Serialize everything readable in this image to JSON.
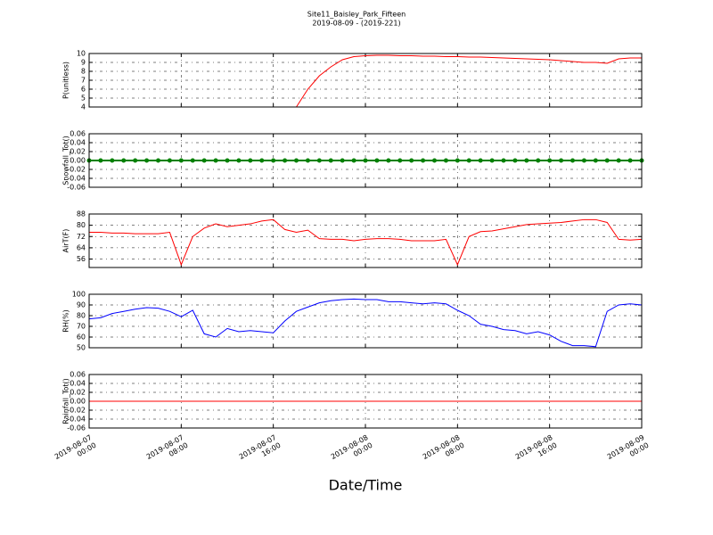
{
  "title": "Site11_Baisley_Park_Fifteen",
  "subtitle": "2019-08-09 - (2019-221)",
  "xlabel": "Date/Time",
  "xlim": [
    "2019-08-07 00:00",
    "2019-08-09 00:00"
  ],
  "xticks": [
    "2019-08-07 00:00",
    "2019-08-07 08:00",
    "2019-08-07 16:00",
    "2019-08-08 00:00",
    "2019-08-08 08:00",
    "2019-08-08 16:00",
    "2019-08-09 00:00"
  ],
  "x": [
    "2019-08-07 00:00",
    "2019-08-07 01:00",
    "2019-08-07 02:00",
    "2019-08-07 03:00",
    "2019-08-07 04:00",
    "2019-08-07 05:00",
    "2019-08-07 06:00",
    "2019-08-07 07:00",
    "2019-08-07 08:00",
    "2019-08-07 09:00",
    "2019-08-07 10:00",
    "2019-08-07 11:00",
    "2019-08-07 12:00",
    "2019-08-07 13:00",
    "2019-08-07 14:00",
    "2019-08-07 15:00",
    "2019-08-07 16:00",
    "2019-08-07 17:00",
    "2019-08-07 18:00",
    "2019-08-07 19:00",
    "2019-08-07 20:00",
    "2019-08-07 21:00",
    "2019-08-07 22:00",
    "2019-08-07 23:00",
    "2019-08-08 00:00",
    "2019-08-08 01:00",
    "2019-08-08 02:00",
    "2019-08-08 03:00",
    "2019-08-08 04:00",
    "2019-08-08 05:00",
    "2019-08-08 06:00",
    "2019-08-08 07:00",
    "2019-08-08 08:00",
    "2019-08-08 09:00",
    "2019-08-08 10:00",
    "2019-08-08 11:00",
    "2019-08-08 12:00",
    "2019-08-08 13:00",
    "2019-08-08 14:00",
    "2019-08-08 15:00",
    "2019-08-08 16:00",
    "2019-08-08 17:00",
    "2019-08-08 18:00",
    "2019-08-08 19:00",
    "2019-08-08 20:00",
    "2019-08-08 21:00",
    "2019-08-08 22:00",
    "2019-08-08 23:00",
    "2019-08-09 00:00"
  ],
  "chart_data": [
    {
      "type": "line",
      "ylabel": "P(unitless)",
      "color": "#ff0000",
      "grid": true,
      "ylim": [
        4,
        10
      ],
      "yticks": [
        4,
        5,
        6,
        7,
        8,
        9,
        10
      ],
      "values": [
        4,
        4,
        4,
        4,
        4,
        4,
        4,
        4,
        4,
        4,
        4,
        4,
        4,
        4,
        4,
        4,
        4,
        4,
        4,
        6.0,
        7.5,
        8.5,
        9.3,
        9.65,
        9.75,
        9.8,
        9.8,
        9.75,
        9.75,
        9.7,
        9.7,
        9.65,
        9.65,
        9.6,
        9.6,
        9.55,
        9.5,
        9.45,
        9.4,
        9.35,
        9.3,
        9.2,
        9.1,
        9.0,
        9.0,
        8.9,
        9.4,
        9.5,
        9.5
      ]
    },
    {
      "type": "line",
      "ylabel": "Snowfall_Tot()",
      "color": "#008000",
      "marker": true,
      "grid": true,
      "ylim": [
        -0.06,
        0.06
      ],
      "yticks": [
        -0.06,
        -0.04,
        -0.02,
        {
          "value": 0,
          "label": "0.00"
        },
        0.02,
        0.04,
        0.06
      ],
      "values": [
        0,
        0,
        0,
        0,
        0,
        0,
        0,
        0,
        0,
        0,
        0,
        0,
        0,
        0,
        0,
        0,
        0,
        0,
        0,
        0,
        0,
        0,
        0,
        0,
        0,
        0,
        0,
        0,
        0,
        0,
        0,
        0,
        0,
        0,
        0,
        0,
        0,
        0,
        0,
        0,
        0,
        0,
        0,
        0,
        0,
        0,
        0,
        0,
        0
      ]
    },
    {
      "type": "line",
      "ylabel": "AirT(F)",
      "color": "#ff0000",
      "grid": true,
      "ylim": [
        50,
        88
      ],
      "yticks": [
        56,
        64,
        72,
        80,
        88
      ],
      "values": [
        75,
        75,
        74.5,
        74.5,
        74,
        74,
        74,
        75,
        52,
        72,
        78,
        81,
        79,
        80,
        81,
        83,
        84,
        77,
        75,
        76.5,
        70.5,
        70,
        70,
        69,
        70,
        70.5,
        70.5,
        70,
        69,
        69,
        69,
        70,
        52,
        72,
        75.5,
        76,
        77.5,
        79,
        80.5,
        81,
        81.5,
        82,
        83,
        84,
        84,
        82,
        70,
        69.5,
        70
      ]
    },
    {
      "type": "line",
      "ylabel": "RH(%)",
      "color": "#0000ff",
      "grid": true,
      "ylim": [
        50,
        100
      ],
      "yticks": [
        50,
        60,
        70,
        80,
        90,
        100
      ],
      "values": [
        77,
        78,
        82,
        84,
        86,
        87.5,
        87,
        84,
        79,
        85,
        63,
        60,
        68,
        65,
        66,
        65,
        64,
        75,
        84,
        88,
        92,
        94,
        95,
        95.5,
        95,
        95,
        93,
        93,
        92,
        91,
        92,
        91,
        85,
        80,
        72,
        70,
        67,
        66,
        63,
        65,
        62,
        56,
        52,
        52,
        51,
        84,
        90,
        91,
        90
      ]
    },
    {
      "type": "line",
      "ylabel": "Rainfall_Tot()",
      "color": "#ff0000",
      "grid": true,
      "ylim": [
        -0.06,
        0.06
      ],
      "yticks": [
        -0.06,
        -0.04,
        -0.02,
        {
          "value": 0,
          "label": "0.00"
        },
        0.02,
        0.04,
        0.06
      ],
      "values": [
        0,
        0,
        0,
        0,
        0,
        0,
        0,
        0,
        0,
        0,
        0,
        0,
        0,
        0,
        0,
        0,
        0,
        0,
        0,
        0,
        0,
        0,
        0,
        0,
        0,
        0,
        0,
        0,
        0,
        0,
        0,
        0,
        0,
        0,
        0,
        0,
        0,
        0,
        0,
        0,
        0,
        0,
        0,
        0,
        0,
        0,
        0,
        0,
        0
      ]
    }
  ]
}
